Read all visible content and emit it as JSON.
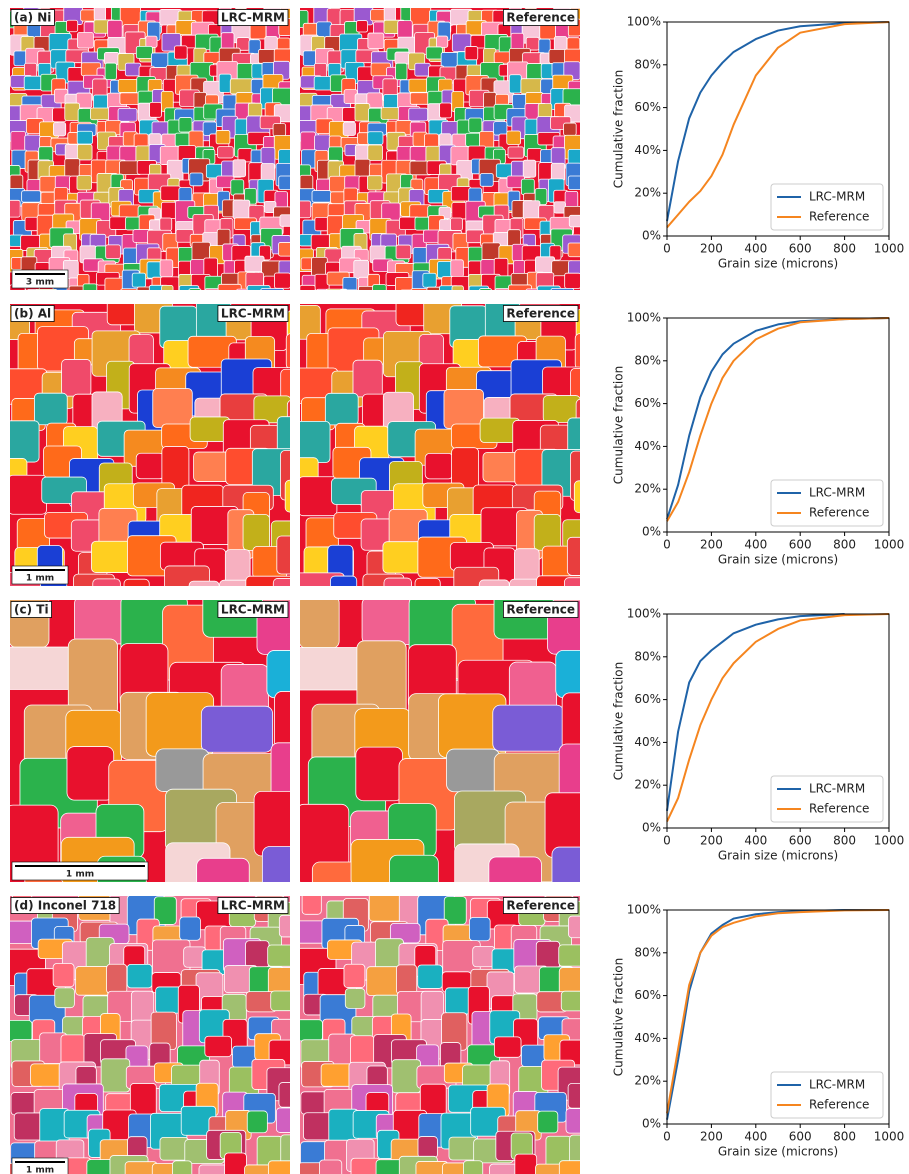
{
  "chart_data": [
    {
      "type": "line",
      "panel_label": "(a) Ni",
      "left_image_label": "LRC-MRM",
      "right_image_label": "Reference",
      "scale_bar": "3 mm",
      "grain_scale": 14,
      "x_label": "Grain size (microns)",
      "y_label": "Cumulative fraction",
      "x": [
        0,
        50,
        100,
        150,
        200,
        250,
        300,
        400,
        500,
        600,
        800,
        1000
      ],
      "series": [
        {
          "name": "LRC-MRM",
          "color": "#1f63a8",
          "values": [
            7,
            35,
            55,
            67,
            75,
            81,
            86,
            92,
            96,
            98,
            99.5,
            100
          ]
        },
        {
          "name": "Reference",
          "color": "#f5851f",
          "values": [
            4,
            10,
            16,
            21,
            28,
            38,
            52,
            75,
            88,
            95,
            99,
            100
          ]
        }
      ],
      "xlim": [
        0,
        1000
      ],
      "xticks": [
        0,
        200,
        400,
        600,
        800,
        1000
      ],
      "ylim": [
        0,
        100
      ],
      "yticks": [
        {
          "value": 0,
          "label": "0%"
        },
        {
          "value": 20,
          "label": "20%"
        },
        {
          "value": 40,
          "label": "40%"
        },
        {
          "value": 60,
          "label": "60%"
        },
        {
          "value": 80,
          "label": "80%"
        },
        {
          "value": 100,
          "label": "100%"
        }
      ],
      "legend": "lower right"
    },
    {
      "type": "line",
      "panel_label": "(b) Al",
      "left_image_label": "LRC-MRM",
      "right_image_label": "Reference",
      "scale_bar": "1 mm",
      "grain_scale": 30,
      "x_label": "Grain size (microns)",
      "y_label": "Cumulative fraction",
      "x": [
        0,
        50,
        100,
        150,
        200,
        250,
        300,
        400,
        500,
        600,
        800,
        1000
      ],
      "series": [
        {
          "name": "LRC-MRM",
          "color": "#1f63a8",
          "values": [
            6,
            22,
            45,
            63,
            75,
            83,
            88,
            94,
            97,
            98.5,
            99.5,
            100
          ]
        },
        {
          "name": "Reference",
          "color": "#f5851f",
          "values": [
            5,
            14,
            28,
            45,
            60,
            72,
            80,
            90,
            95,
            98,
            99.5,
            100
          ]
        }
      ],
      "xlim": [
        0,
        1000
      ],
      "xticks": [
        0,
        200,
        400,
        600,
        800,
        1000
      ],
      "ylim": [
        0,
        100
      ],
      "yticks": [
        {
          "value": 0,
          "label": "0%"
        },
        {
          "value": 20,
          "label": "20%"
        },
        {
          "value": 40,
          "label": "40%"
        },
        {
          "value": 60,
          "label": "60%"
        },
        {
          "value": 80,
          "label": "80%"
        },
        {
          "value": 100,
          "label": "100%"
        }
      ],
      "legend": "lower right"
    },
    {
      "type": "line",
      "panel_label": "(c) Ti",
      "left_image_label": "LRC-MRM",
      "right_image_label": "Reference",
      "scale_bar": "1 mm",
      "grain_scale": 50,
      "x_label": "Grain size (microns)",
      "y_label": "Cumulative fraction",
      "x": [
        0,
        50,
        100,
        150,
        200,
        250,
        300,
        400,
        500,
        600,
        800,
        1000
      ],
      "series": [
        {
          "name": "LRC-MRM",
          "color": "#1f63a8",
          "values": [
            8,
            45,
            68,
            78,
            83,
            87,
            91,
            95,
            97.5,
            99,
            100,
            null
          ]
        },
        {
          "name": "Reference",
          "color": "#f5851f",
          "values": [
            3,
            14,
            32,
            48,
            60,
            70,
            77,
            87,
            93,
            97,
            99.5,
            100
          ]
        }
      ],
      "xlim": [
        0,
        1000
      ],
      "xticks": [
        0,
        200,
        400,
        600,
        800,
        1000
      ],
      "ylim": [
        0,
        100
      ],
      "yticks": [
        {
          "value": 0,
          "label": "0%"
        },
        {
          "value": 20,
          "label": "20%"
        },
        {
          "value": 40,
          "label": "40%"
        },
        {
          "value": 60,
          "label": "60%"
        },
        {
          "value": 80,
          "label": "80%"
        },
        {
          "value": 100,
          "label": "100%"
        }
      ],
      "legend": "lower right"
    },
    {
      "type": "line",
      "panel_label": "(d) Inconel 718",
      "left_image_label": "LRC-MRM",
      "right_image_label": "Reference",
      "scale_bar": "1 mm",
      "grain_scale": 24,
      "x_label": "Grain size (microns)",
      "y_label": "Cumulative fraction",
      "x": [
        0,
        50,
        100,
        150,
        200,
        250,
        300,
        400,
        500,
        600,
        800,
        1000
      ],
      "series": [
        {
          "name": "LRC-MRM",
          "color": "#1f63a8",
          "values": [
            2,
            30,
            62,
            80,
            89,
            93,
            96,
            98,
            99,
            99.5,
            100,
            100
          ]
        },
        {
          "name": "Reference",
          "color": "#f5851f",
          "values": [
            5,
            35,
            65,
            80,
            88,
            92,
            94,
            97,
            98.5,
            99,
            99.8,
            100
          ]
        }
      ],
      "xlim": [
        0,
        1000
      ],
      "xticks": [
        0,
        200,
        400,
        600,
        800,
        1000
      ],
      "ylim": [
        0,
        100
      ],
      "yticks": [
        {
          "value": 0,
          "label": "0%"
        },
        {
          "value": 20,
          "label": "20%"
        },
        {
          "value": 40,
          "label": "40%"
        },
        {
          "value": 60,
          "label": "60%"
        },
        {
          "value": 80,
          "label": "80%"
        },
        {
          "value": 100,
          "label": "100%"
        }
      ],
      "legend": "lower right"
    }
  ]
}
